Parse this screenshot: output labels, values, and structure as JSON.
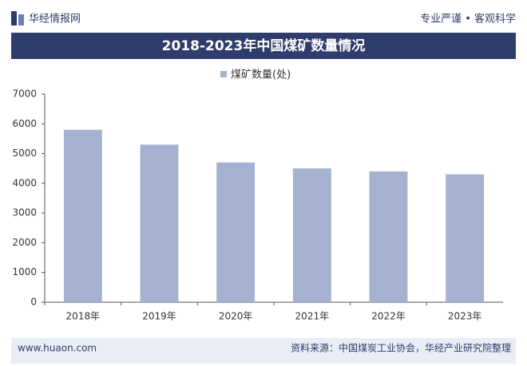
{
  "header": {
    "brand": "华经情报网",
    "slogan": "专业严谨 • 客观科学"
  },
  "chart_data": {
    "type": "bar",
    "title": "2018-2023年中国煤矿数量情况",
    "categories": [
      "2018年",
      "2019年",
      "2020年",
      "2021年",
      "2022年",
      "2023年"
    ],
    "series": [
      {
        "name": "煤矿数量(处)",
        "color": "#a4b1d0",
        "values": [
          5800,
          5300,
          4700,
          4500,
          4400,
          4300
        ]
      }
    ],
    "ylim": [
      0,
      7000
    ],
    "yticks": [
      0,
      1000,
      2000,
      3000,
      4000,
      5000,
      6000,
      7000
    ],
    "grid": false
  },
  "footer": {
    "website": "www.huaon.com",
    "source": "资料来源：中国煤炭工业协会，华经产业研究院整理"
  }
}
